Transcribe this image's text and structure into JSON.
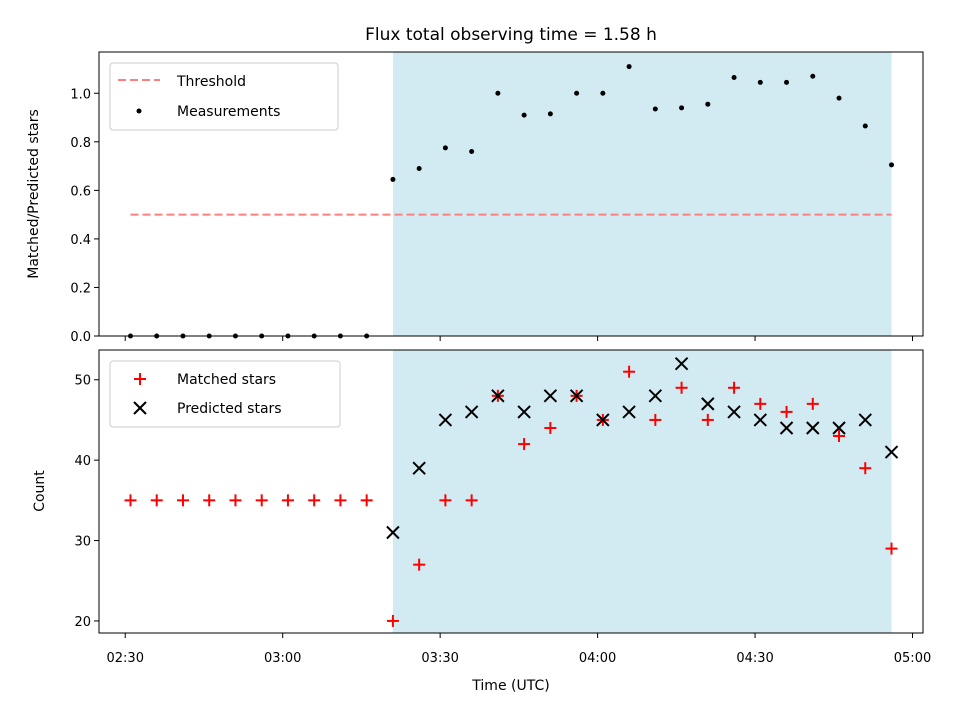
{
  "chart_data": [
    {
      "type": "scatter",
      "title": "Flux total observing time = 1.58 h",
      "xlabel": "",
      "ylabel": "Matched/Predicted stars",
      "ylim": [
        0,
        1.17
      ],
      "yticks": [
        "0.0",
        "0.2",
        "0.4",
        "0.6",
        "0.8",
        "1.0"
      ],
      "ytick_values": [
        0,
        0.2,
        0.4,
        0.6,
        0.8,
        1.0
      ],
      "threshold": {
        "name": "Threshold",
        "value": 0.5,
        "color": "#ff7f7f",
        "x_range": [
          "02:31",
          "04:56"
        ]
      },
      "series": [
        {
          "name": "Measurements",
          "color": "#000000",
          "marker": "dot",
          "x": [
            "02:31",
            "02:36",
            "02:41",
            "02:46",
            "02:51",
            "02:56",
            "03:01",
            "03:06",
            "03:11",
            "03:16",
            "03:21",
            "03:26",
            "03:31",
            "03:36",
            "03:41",
            "03:46",
            "03:51",
            "03:56",
            "04:01",
            "04:06",
            "04:11",
            "04:16",
            "04:21",
            "04:26",
            "04:31",
            "04:36",
            "04:41",
            "04:46",
            "04:51",
            "04:56"
          ],
          "y": [
            0,
            0,
            0,
            0,
            0,
            0,
            0,
            0,
            0,
            0,
            0.645,
            0.69,
            0.775,
            0.76,
            1.0,
            0.91,
            0.915,
            1.0,
            1.0,
            1.11,
            0.935,
            0.94,
            0.955,
            1.065,
            1.045,
            1.045,
            1.07,
            0.98,
            0.865,
            0.705
          ]
        }
      ],
      "legend": {
        "position": "top-left",
        "entries": [
          "Threshold",
          "Measurements"
        ]
      },
      "shaded_region": {
        "x_start": "03:21",
        "x_end": "04:56",
        "color": "#add8e6"
      }
    },
    {
      "type": "scatter",
      "xlabel": "Time (UTC)",
      "ylabel": "Count",
      "ylim": [
        18.5,
        53.7
      ],
      "yticks": [
        "20",
        "30",
        "40",
        "50"
      ],
      "ytick_values": [
        20,
        30,
        40,
        50
      ],
      "xlim": [
        "02:25",
        "05:02"
      ],
      "xticks": [
        "02:30",
        "03:00",
        "03:30",
        "04:00",
        "04:30",
        "05:00"
      ],
      "series": [
        {
          "name": "Matched stars",
          "color": "#ff0000",
          "marker": "plus",
          "x": [
            "02:31",
            "02:36",
            "02:41",
            "02:46",
            "02:51",
            "02:56",
            "03:01",
            "03:06",
            "03:11",
            "03:16",
            "03:21",
            "03:26",
            "03:31",
            "03:36",
            "03:41",
            "03:46",
            "03:51",
            "03:56",
            "04:01",
            "04:06",
            "04:11",
            "04:16",
            "04:21",
            "04:26",
            "04:31",
            "04:36",
            "04:41",
            "04:46",
            "04:51",
            "04:56"
          ],
          "y": [
            35,
            35,
            35,
            35,
            35,
            35,
            35,
            35,
            35,
            35,
            20,
            27,
            35,
            35,
            48,
            42,
            44,
            48,
            45,
            51,
            45,
            49,
            45,
            49,
            47,
            46,
            47,
            43,
            39,
            29
          ]
        },
        {
          "name": "Predicted stars",
          "color": "#000000",
          "marker": "x",
          "x": [
            "03:21",
            "03:26",
            "03:31",
            "03:36",
            "03:41",
            "03:46",
            "03:51",
            "03:56",
            "04:01",
            "04:06",
            "04:11",
            "04:16",
            "04:21",
            "04:26",
            "04:31",
            "04:36",
            "04:41",
            "04:46",
            "04:51",
            "04:56"
          ],
          "y": [
            31,
            39,
            45,
            46,
            48,
            46,
            48,
            48,
            45,
            46,
            48,
            52,
            47,
            46,
            45,
            44,
            44,
            44,
            45,
            41
          ]
        }
      ],
      "legend": {
        "position": "top-left",
        "entries": [
          "Matched stars",
          "Predicted stars"
        ]
      },
      "shaded_region": {
        "x_start": "03:21",
        "x_end": "04:56",
        "color": "#add8e6"
      }
    }
  ]
}
